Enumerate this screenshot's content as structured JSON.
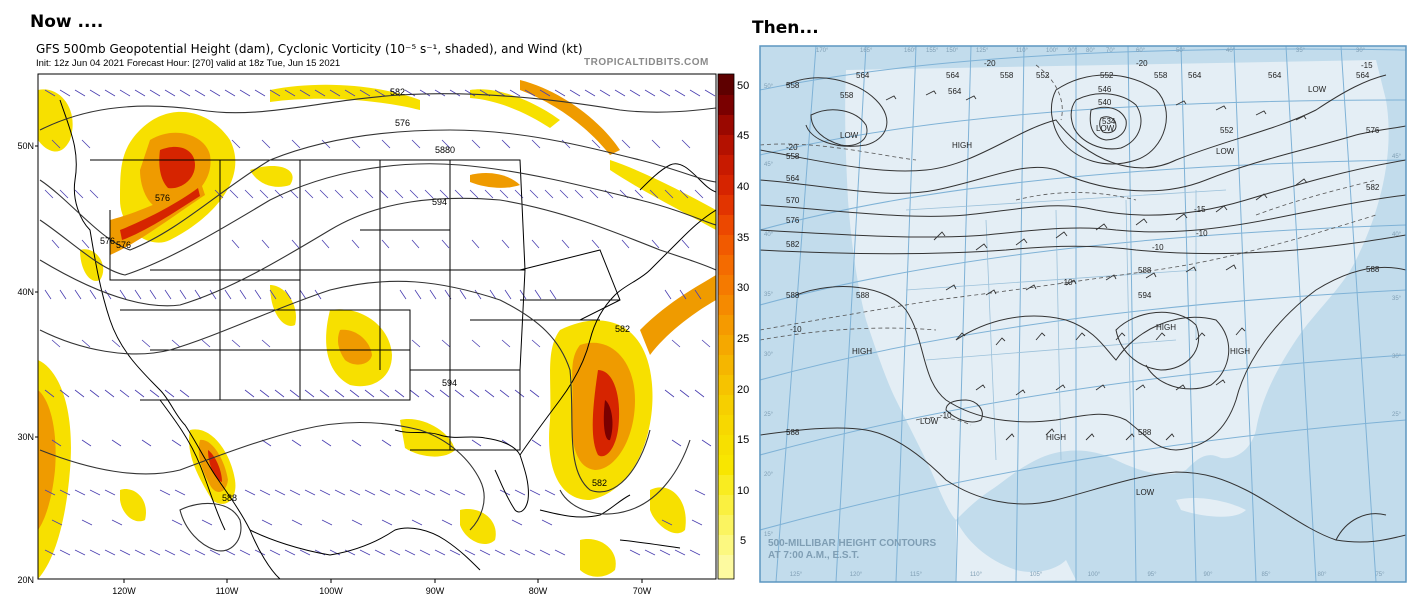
{
  "left_panel": {
    "heading": "Now ....",
    "title": "GFS 500mb Geopotential Height (dam), Cyclonic Vorticity (10⁻⁵ s⁻¹, shaded), and Wind (kt)",
    "subtitle": "Init: 12z Jun 04 2021   Forecast Hour: [270]   valid at 18z Tue, Jun 15 2021",
    "source": "TROPICALTIDBITS.COM",
    "lat_labels": [
      "50N",
      "40N",
      "30N",
      "20N"
    ],
    "lon_labels": [
      "120W",
      "110W",
      "100W",
      "90W",
      "80W",
      "70W"
    ],
    "colorbar_ticks": [
      "50",
      "45",
      "40",
      "35",
      "30",
      "25",
      "20",
      "15",
      "10",
      "5"
    ],
    "contour_labels": [
      "576",
      "576",
      "582",
      "5880",
      "594",
      "594",
      "582",
      "582",
      "588",
      "576",
      "576"
    ],
    "colors": {
      "yellow": "#f7e000",
      "orange": "#ef9b00",
      "red": "#d62400",
      "darkred": "#7a0000",
      "barb": "#4a3fb0"
    }
  },
  "right_panel": {
    "heading": "Then...",
    "map_label_line1": "500-MILLIBAR HEIGHT CONTOURS",
    "map_label_line2": "AT 7:00 A.M., E.S.T.",
    "top_lon_labels": [
      "170°",
      "165°",
      "160°",
      "155°",
      "150°",
      "125°",
      "110°",
      "100°",
      "90°",
      "80°",
      "70°",
      "60°",
      "50°",
      "40°",
      "35°",
      "30°"
    ],
    "bottom_lon_labels": [
      "125°",
      "120°",
      "115°",
      "110°",
      "105°",
      "100°",
      "95°",
      "90°",
      "85°",
      "80°",
      "75°"
    ],
    "left_lat_labels": [
      "50°",
      "45°",
      "40°",
      "35°",
      "30°",
      "25°",
      "20°",
      "15°"
    ],
    "right_lat_labels": [
      "45°",
      "40°",
      "35°",
      "30°",
      "25°"
    ],
    "height_labels": [
      "564",
      "564",
      "564",
      "558",
      "552",
      "552",
      "558",
      "564",
      "564",
      "564",
      "558",
      "558",
      "546",
      "540",
      "534",
      "552",
      "558",
      "564",
      "570",
      "576",
      "582",
      "588",
      "588",
      "594",
      "588",
      "588",
      "576",
      "582",
      "588",
      "588"
    ],
    "temp_labels": [
      "-20",
      "-20",
      "-20",
      "-15",
      "-15",
      "-10",
      "-10",
      "-10",
      "-10",
      "-10"
    ],
    "pressure_centers": [
      "LOW",
      "LOW",
      "LOW",
      "LOW",
      "HIGH",
      "HIGH",
      "HIGH",
      "HIGH",
      "HIGH",
      "LOW",
      "LOW"
    ],
    "colors": {
      "map_bg": "#c2dcec",
      "land": "#e4eef5",
      "grid": "#7fb2d6",
      "contour": "#333333"
    }
  }
}
